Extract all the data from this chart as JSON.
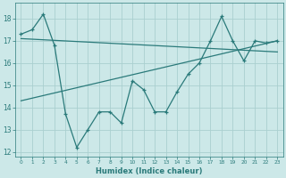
{
  "xlabel": "Humidex (Indice chaleur)",
  "x": [
    0,
    1,
    2,
    3,
    4,
    5,
    6,
    7,
    8,
    9,
    10,
    11,
    12,
    13,
    14,
    15,
    16,
    17,
    18,
    19,
    20,
    21,
    22,
    23
  ],
  "y_main": [
    17.3,
    17.5,
    18.2,
    16.8,
    13.7,
    12.2,
    13.0,
    13.8,
    13.8,
    13.3,
    15.2,
    14.8,
    13.8,
    13.8,
    14.7,
    15.5,
    16.0,
    17.0,
    18.1,
    17.0,
    16.1,
    17.0,
    16.9,
    17.0
  ],
  "trend1_x": [
    0,
    23
  ],
  "trend1_y": [
    17.1,
    16.5
  ],
  "trend2_x": [
    0,
    23
  ],
  "trend2_y": [
    14.3,
    17.0
  ],
  "line_color": "#2a7a7a",
  "bg_color": "#cce8e8",
  "grid_color": "#aacfcf",
  "ylim": [
    11.8,
    18.7
  ],
  "xlim": [
    -0.5,
    23.5
  ],
  "yticks": [
    12,
    13,
    14,
    15,
    16,
    17,
    18
  ],
  "xticks": [
    0,
    1,
    2,
    3,
    4,
    5,
    6,
    7,
    8,
    9,
    10,
    11,
    12,
    13,
    14,
    15,
    16,
    17,
    18,
    19,
    20,
    21,
    22,
    23
  ]
}
